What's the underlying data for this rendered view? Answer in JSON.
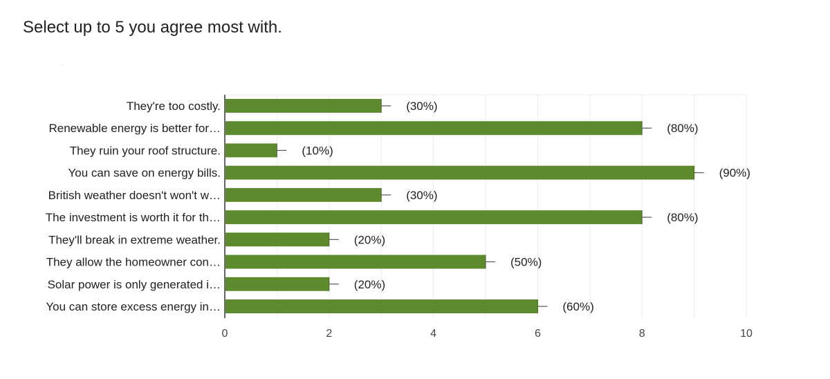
{
  "question": "Select up to 5 you agree most with.",
  "colors": {
    "bar": "#5e8a2e",
    "grid": "#ececec",
    "axis": "#333333",
    "whisker": "#555555"
  },
  "chart_data": {
    "type": "bar",
    "orientation": "horizontal",
    "title": "",
    "xlabel": "",
    "ylabel": "",
    "xlim": [
      0,
      10
    ],
    "xticks": [
      "0",
      "2",
      "4",
      "6",
      "8",
      "10"
    ],
    "grid": true,
    "categories": [
      "They're too costly.",
      "Renewable energy is better for…",
      "They ruin your roof structure.",
      "You can save on energy bills.",
      "British weather doesn't won't w…",
      "The investment is worth it for th…",
      "They'll break in extreme weather.",
      "They allow the homeowner con…",
      "Solar power is only generated i…",
      "You can store excess energy in…"
    ],
    "values": [
      3,
      8,
      1,
      9,
      3,
      8,
      2,
      5,
      2,
      6
    ],
    "data_labels": [
      "(30%)",
      "(80%)",
      "(10%)",
      "(90%)",
      "(30%)",
      "(80%)",
      "(20%)",
      "(50%)",
      "(20%)",
      "(60%)"
    ]
  }
}
